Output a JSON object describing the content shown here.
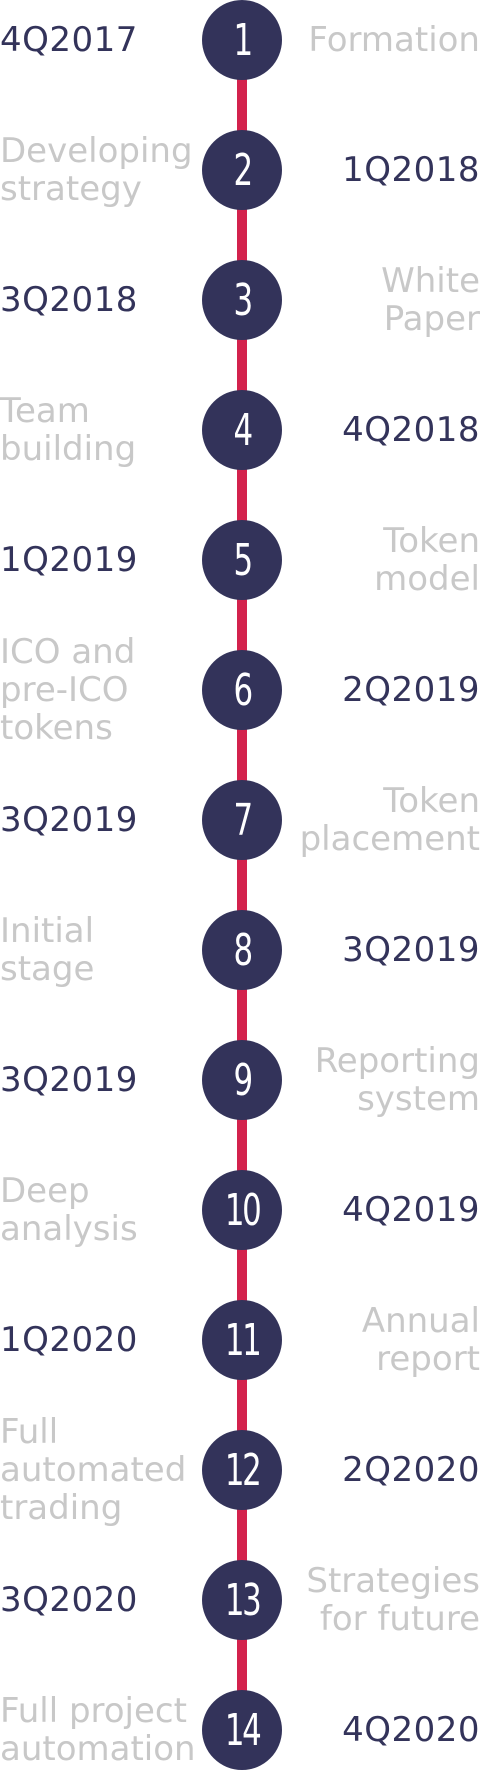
{
  "colors": {
    "line": "#d3224d",
    "node": "#33335a",
    "node_text": "#ffffff",
    "date_text": "#33335a",
    "title_text": "#c8c8c8",
    "background": "#ffffff"
  },
  "milestones": [
    {
      "number": "1",
      "date": "4Q2017",
      "title": "Formation",
      "date_side": "left"
    },
    {
      "number": "2",
      "date": "1Q2018",
      "title": "Developing\nstrategy",
      "date_side": "right"
    },
    {
      "number": "3",
      "date": "3Q2018",
      "title": "White\nPaper",
      "date_side": "left"
    },
    {
      "number": "4",
      "date": "4Q2018",
      "title": "Team\nbuilding",
      "date_side": "right"
    },
    {
      "number": "5",
      "date": "1Q2019",
      "title": "Token\nmodel",
      "date_side": "left"
    },
    {
      "number": "6",
      "date": "2Q2019",
      "title": "ICO and\npre-ICO\ntokens",
      "date_side": "right"
    },
    {
      "number": "7",
      "date": "3Q2019",
      "title": "Token\nplacement",
      "date_side": "left"
    },
    {
      "number": "8",
      "date": "3Q2019",
      "title": "Initial\nstage",
      "date_side": "right"
    },
    {
      "number": "9",
      "date": "3Q2019",
      "title": "Reporting\nsystem",
      "date_side": "left"
    },
    {
      "number": "10",
      "date": "4Q2019",
      "title": "Deep\nanalysis",
      "date_side": "right"
    },
    {
      "number": "11",
      "date": "1Q2020",
      "title": "Annual\nreport",
      "date_side": "left"
    },
    {
      "number": "12",
      "date": "2Q2020",
      "title": "Full\nautomated\ntrading",
      "date_side": "right"
    },
    {
      "number": "13",
      "date": "3Q2020",
      "title": "Strategies\nfor future",
      "date_side": "left"
    },
    {
      "number": "14",
      "date": "4Q2020",
      "title": "Full project\nautomation",
      "date_side": "right"
    }
  ]
}
